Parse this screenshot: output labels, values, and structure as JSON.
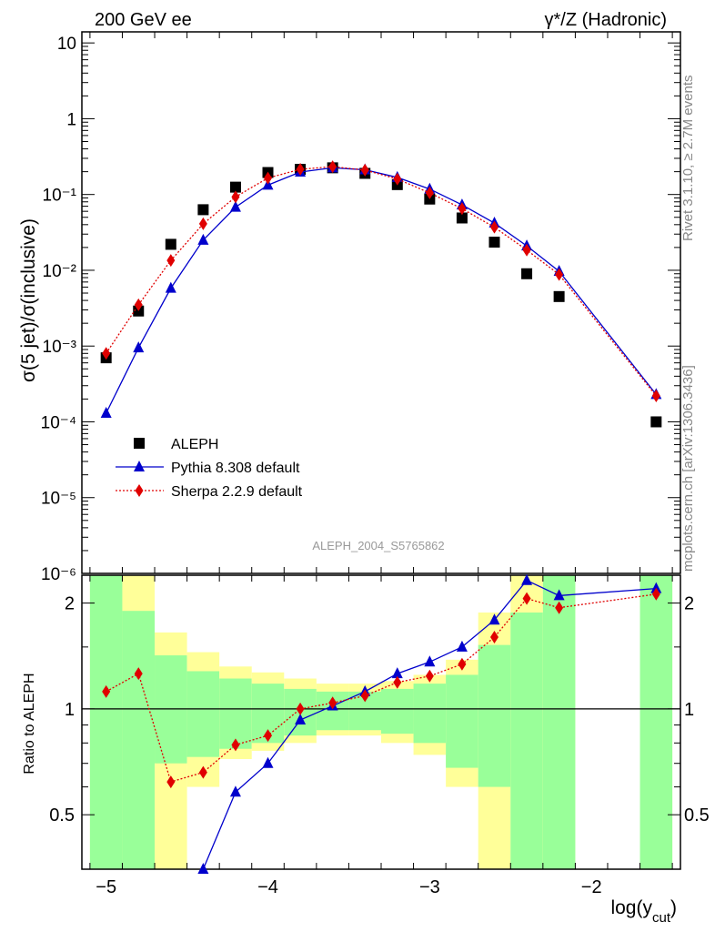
{
  "header": {
    "left": "200 GeV ee",
    "right_main": "γ*/Z (Hadronic)"
  },
  "side_labels": {
    "rivet": "Rivet 3.1.10, ≥ 2.7M events",
    "mcplots": "mcplots.cern.ch [arXiv:1306.3436]"
  },
  "analysis_id": "ALEPH_2004_S5765862",
  "chart_data": [
    {
      "type": "scatter",
      "panel": "main",
      "ylabel": "σ(5 jet)/σ(inclusive)",
      "yscale": "log",
      "xlim": [
        -5.15,
        -1.45
      ],
      "ylim": [
        1e-06,
        14
      ],
      "grid": false,
      "legend_placement": "lower-left",
      "y_ticks": [
        "10",
        "1",
        "10⁻¹",
        "10⁻²",
        "10⁻³",
        "10⁻⁴",
        "10⁻⁵",
        "10⁻⁶"
      ],
      "series": [
        {
          "name": "ALEPH",
          "marker": "square",
          "color": "#000000",
          "x": [
            -5.0,
            -4.8,
            -4.6,
            -4.4,
            -4.2,
            -4.0,
            -3.8,
            -3.6,
            -3.4,
            -3.2,
            -3.0,
            -2.8,
            -2.6,
            -2.4,
            -2.2,
            -1.6
          ],
          "y": [
            0.0007,
            0.0029,
            0.022,
            0.063,
            0.125,
            0.195,
            0.215,
            0.225,
            0.19,
            0.135,
            0.087,
            0.049,
            0.0235,
            0.009,
            0.0045,
            0.0001
          ]
        },
        {
          "name": "Pythia 8.308 default",
          "marker": "triangle",
          "line": "solid",
          "color": "#0000cc",
          "x": [
            -5.0,
            -4.8,
            -4.6,
            -4.4,
            -4.2,
            -4.0,
            -3.8,
            -3.6,
            -3.4,
            -3.2,
            -3.0,
            -2.8,
            -2.6,
            -2.4,
            -2.2,
            -1.6
          ],
          "y": [
            0.00013,
            0.00095,
            0.0058,
            0.025,
            0.068,
            0.133,
            0.198,
            0.225,
            0.212,
            0.168,
            0.118,
            0.073,
            0.042,
            0.021,
            0.0097,
            0.00023
          ]
        },
        {
          "name": "Sherpa 2.2.9 default",
          "marker": "diamond",
          "line": "dotted",
          "color": "#e00000",
          "x": [
            -5.0,
            -4.8,
            -4.6,
            -4.4,
            -4.2,
            -4.0,
            -3.8,
            -3.6,
            -3.4,
            -3.2,
            -3.0,
            -2.8,
            -2.6,
            -2.4,
            -2.2,
            -1.6
          ],
          "y": [
            0.0008,
            0.0035,
            0.0135,
            0.041,
            0.093,
            0.165,
            0.215,
            0.233,
            0.21,
            0.16,
            0.105,
            0.065,
            0.037,
            0.0185,
            0.0088,
            0.00022
          ]
        }
      ]
    },
    {
      "type": "line",
      "panel": "ratio",
      "xlabel": "log(y_cut)",
      "ylabel": "Ratio to ALEPH",
      "xlim": [
        -5.15,
        -1.45
      ],
      "ylim": [
        0.35,
        2.4
      ],
      "reference_line": 1,
      "x_ticks": [
        "−5",
        "−4",
        "−3",
        "−2"
      ],
      "y_ticks_left": [
        "2",
        "1",
        "0.5"
      ],
      "y_ticks_right": [
        "2",
        "1",
        "0.5"
      ],
      "uncertainty_bands": {
        "colors": {
          "outer": "#ffff99",
          "inner": "#99ff99"
        },
        "bins": [
          {
            "x0": -5.1,
            "x1": -4.9,
            "inner": [
              0.35,
              2.4
            ],
            "outer": [
              0.35,
              2.4
            ]
          },
          {
            "x0": -4.9,
            "x1": -4.7,
            "inner": [
              0.35,
              1.9
            ],
            "outer": [
              0.35,
              2.4
            ]
          },
          {
            "x0": -4.7,
            "x1": -4.5,
            "inner": [
              0.7,
              1.42
            ],
            "outer": [
              0.35,
              1.65
            ]
          },
          {
            "x0": -4.5,
            "x1": -4.3,
            "inner": [
              0.73,
              1.28
            ],
            "outer": [
              0.6,
              1.45
            ]
          },
          {
            "x0": -4.3,
            "x1": -4.1,
            "inner": [
              0.77,
              1.22
            ],
            "outer": [
              0.72,
              1.32
            ]
          },
          {
            "x0": -4.1,
            "x1": -3.9,
            "inner": [
              0.8,
              1.18
            ],
            "outer": [
              0.76,
              1.27
            ]
          },
          {
            "x0": -3.9,
            "x1": -3.7,
            "inner": [
              0.84,
              1.14
            ],
            "outer": [
              0.8,
              1.22
            ]
          },
          {
            "x0": -3.7,
            "x1": -3.5,
            "inner": [
              0.87,
              1.12
            ],
            "outer": [
              0.84,
              1.18
            ]
          },
          {
            "x0": -3.5,
            "x1": -3.3,
            "inner": [
              0.87,
              1.12
            ],
            "outer": [
              0.84,
              1.18
            ]
          },
          {
            "x0": -3.3,
            "x1": -3.1,
            "inner": [
              0.85,
              1.14
            ],
            "outer": [
              0.8,
              1.2
            ]
          },
          {
            "x0": -3.1,
            "x1": -2.9,
            "inner": [
              0.8,
              1.18
            ],
            "outer": [
              0.74,
              1.25
            ]
          },
          {
            "x0": -2.9,
            "x1": -2.7,
            "inner": [
              0.68,
              1.25
            ],
            "outer": [
              0.6,
              1.38
            ]
          },
          {
            "x0": -2.7,
            "x1": -2.5,
            "inner": [
              0.6,
              1.52
            ],
            "outer": [
              0.35,
              1.88
            ]
          },
          {
            "x0": -2.5,
            "x1": -2.3,
            "inner": [
              0.35,
              1.88
            ],
            "outer": [
              0.35,
              2.4
            ]
          },
          {
            "x0": -2.3,
            "x1": -2.1,
            "inner": [
              0.35,
              2.4
            ],
            "outer": [
              0.35,
              2.4
            ]
          },
          {
            "x0": -1.7,
            "x1": -1.5,
            "inner": [
              0.35,
              2.4
            ],
            "outer": [
              0.35,
              2.4
            ]
          }
        ]
      },
      "series": [
        {
          "name": "Pythia 8.308 default",
          "marker": "triangle",
          "line": "solid",
          "color": "#0000cc",
          "x": [
            -4.4,
            -4.2,
            -4.0,
            -3.8,
            -3.6,
            -3.4,
            -3.2,
            -3.0,
            -2.8,
            -2.6,
            -2.4,
            -2.2,
            -1.6
          ],
          "y": [
            0.35,
            0.58,
            0.7,
            0.93,
            1.02,
            1.12,
            1.26,
            1.36,
            1.5,
            1.79,
            2.32,
            2.1,
            2.2
          ]
        },
        {
          "name": "Sherpa 2.2.9 default",
          "marker": "diamond",
          "line": "dotted",
          "color": "#e00000",
          "x": [
            -5.0,
            -4.8,
            -4.6,
            -4.4,
            -4.2,
            -4.0,
            -3.8,
            -3.6,
            -3.4,
            -3.2,
            -3.0,
            -2.8,
            -2.6,
            -2.4,
            -2.2,
            -1.6
          ],
          "y": [
            1.12,
            1.26,
            0.62,
            0.66,
            0.79,
            0.84,
            1.0,
            1.04,
            1.09,
            1.19,
            1.24,
            1.34,
            1.6,
            2.06,
            1.94,
            2.12
          ]
        }
      ]
    }
  ]
}
